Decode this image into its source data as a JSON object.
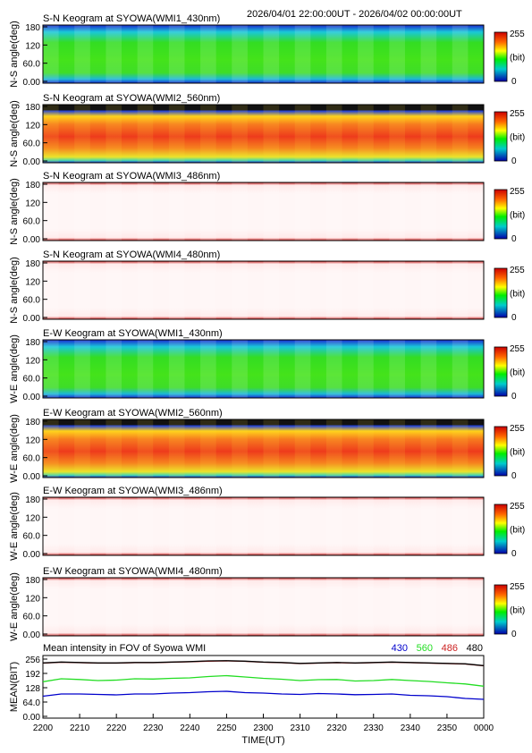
{
  "header": {
    "time_range": "2026/04/01 22:00:00UT - 2026/04/02 00:00:00UT"
  },
  "colorbar": {
    "max_label": "255",
    "unit_label": "(bit)",
    "min_label": "0"
  },
  "chart_data": [
    {
      "type": "heatmap",
      "title": "S-N Keogram at SYOWA(WMI1_430nm)",
      "ylabel": "N-S angle(deg)",
      "yticks": [
        "180",
        "120",
        "60.0",
        "0.00"
      ],
      "ylim": [
        0,
        180
      ],
      "value_range": [
        0,
        255
      ],
      "profile": "green",
      "colormap": "rainbow"
    },
    {
      "type": "heatmap",
      "title": "S-N Keogram at SYOWA(WMI2_560nm)",
      "ylabel": "N-S angle(deg)",
      "yticks": [
        "180",
        "120",
        "60.0",
        "0.00"
      ],
      "ylim": [
        0,
        180
      ],
      "value_range": [
        0,
        255
      ],
      "profile": "red-orange",
      "colormap": "rainbow"
    },
    {
      "type": "heatmap",
      "title": "S-N Keogram at SYOWA(WMI3_486nm)",
      "ylabel": "N-S angle(deg)",
      "yticks": [
        "180",
        "120",
        "60.0",
        "0.00"
      ],
      "ylim": [
        0,
        180
      ],
      "value_range": [
        0,
        255
      ],
      "profile": "saturated",
      "colormap": "rainbow"
    },
    {
      "type": "heatmap",
      "title": "S-N Keogram at SYOWA(WMI4_480nm)",
      "ylabel": "N-S angle(deg)",
      "yticks": [
        "180",
        "120",
        "60.0",
        "0.00"
      ],
      "ylim": [
        0,
        180
      ],
      "value_range": [
        0,
        255
      ],
      "profile": "saturated",
      "colormap": "rainbow"
    },
    {
      "type": "heatmap",
      "title": "E-W Keogram at SYOWA(WMI1_430nm)",
      "ylabel": "W-E angle(deg)",
      "yticks": [
        "180",
        "120",
        "60.0",
        "0.00"
      ],
      "ylim": [
        0,
        180
      ],
      "value_range": [
        0,
        255
      ],
      "profile": "green",
      "colormap": "rainbow"
    },
    {
      "type": "heatmap",
      "title": "E-W Keogram at SYOWA(WMI2_560nm)",
      "ylabel": "W-E angle(deg)",
      "yticks": [
        "180",
        "120",
        "60.0",
        "0.00"
      ],
      "ylim": [
        0,
        180
      ],
      "value_range": [
        0,
        255
      ],
      "profile": "red-orange",
      "colormap": "rainbow"
    },
    {
      "type": "heatmap",
      "title": "E-W Keogram at SYOWA(WMI3_486nm)",
      "ylabel": "W-E angle(deg)",
      "yticks": [
        "180",
        "120",
        "60.0",
        "0.00"
      ],
      "ylim": [
        0,
        180
      ],
      "value_range": [
        0,
        255
      ],
      "profile": "saturated",
      "colormap": "rainbow"
    },
    {
      "type": "heatmap",
      "title": "E-W Keogram at SYOWA(WMI4_480nm)",
      "ylabel": "W-E angle(deg)",
      "yticks": [
        "180",
        "120",
        "60.0",
        "0.00"
      ],
      "ylim": [
        0,
        180
      ],
      "value_range": [
        0,
        255
      ],
      "profile": "saturated",
      "colormap": "rainbow"
    },
    {
      "type": "line",
      "title": "Mean intensity in FOV of Syowa WMI",
      "ylabel": "MEAN(BIT)",
      "xlabel": "TIME(UT)",
      "yticks": [
        "256",
        "192",
        "128",
        "64.0",
        "0.00"
      ],
      "ylim": [
        0,
        256
      ],
      "xlim": [
        0,
        120
      ],
      "xticks": [
        {
          "label": "2200",
          "x": 0
        },
        {
          "label": "2210",
          "x": 10
        },
        {
          "label": "2220",
          "x": 20
        },
        {
          "label": "2230",
          "x": 30
        },
        {
          "label": "2240",
          "x": 40
        },
        {
          "label": "2250",
          "x": 50
        },
        {
          "label": "2300",
          "x": 60
        },
        {
          "label": "2310",
          "x": 70
        },
        {
          "label": "2320",
          "x": 80
        },
        {
          "label": "2330",
          "x": 90
        },
        {
          "label": "2340",
          "x": 100
        },
        {
          "label": "2350",
          "x": 110
        },
        {
          "label": "0000",
          "x": 120
        }
      ],
      "x": [
        0,
        5,
        10,
        15,
        20,
        25,
        30,
        35,
        40,
        45,
        50,
        55,
        60,
        65,
        70,
        75,
        80,
        85,
        90,
        95,
        100,
        105,
        110,
        115,
        120
      ],
      "series": [
        {
          "name": "430",
          "color": "#0000cc",
          "values": [
            90,
            100,
            100,
            98,
            96,
            100,
            100,
            104,
            106,
            110,
            112,
            106,
            104,
            100,
            98,
            102,
            100,
            97,
            98,
            100,
            94,
            92,
            88,
            80,
            76
          ]
        },
        {
          "name": "560",
          "color": "#22dd22",
          "values": [
            155,
            168,
            165,
            160,
            162,
            168,
            167,
            170,
            172,
            178,
            182,
            176,
            170,
            166,
            160,
            164,
            165,
            158,
            160,
            165,
            160,
            156,
            150,
            145,
            135
          ]
        },
        {
          "name": "486",
          "color": "#cc2222",
          "values": [
            238,
            242,
            240,
            238,
            238,
            240,
            240,
            242,
            244,
            247,
            248,
            246,
            242,
            240,
            236,
            238,
            240,
            238,
            240,
            242,
            240,
            238,
            236,
            234,
            226
          ]
        },
        {
          "name": "480",
          "color": "#000000",
          "values": [
            239,
            243,
            241,
            239,
            239,
            241,
            241,
            243,
            245,
            248,
            249,
            247,
            243,
            241,
            237,
            239,
            241,
            239,
            241,
            243,
            241,
            239,
            237,
            235,
            227
          ]
        }
      ]
    }
  ]
}
